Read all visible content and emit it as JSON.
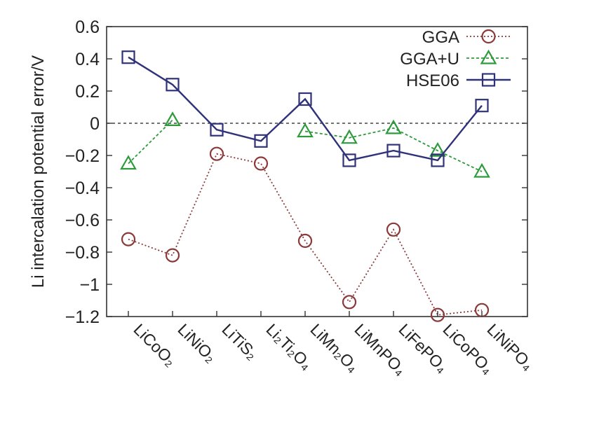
{
  "chart_data": {
    "type": "line",
    "ylabel": "Li intercalation potential error/V",
    "xlabel": "",
    "categories": [
      "LiCoO₂",
      "LiNiO₂",
      "LiTiS₂",
      "Li₂Ti₂O₄",
      "LiMn₂O₄",
      "LiMnPO₄",
      "LiFePO₄",
      "LiCoPO₄",
      "LiNiPO₄"
    ],
    "ylim": [
      -1.2,
      0.6
    ],
    "yticks": [
      0.6,
      0.4,
      0.2,
      0,
      -0.2,
      -0.4,
      -0.6,
      -0.8,
      -1,
      -1.2
    ],
    "ytick_labels": [
      "0.6",
      "0.4",
      "0.2",
      "0",
      "−0.2",
      "−0.4",
      "−0.6",
      "−0.8",
      "−1",
      "−1.2"
    ],
    "reference_line": 0,
    "legend_position": "top-right",
    "series": [
      {
        "name": "GGA",
        "marker": "circle",
        "color": "#8b3a3a",
        "line": "dotted",
        "values": [
          -0.72,
          -0.82,
          -0.19,
          -0.25,
          -0.73,
          -1.11,
          -0.66,
          -1.19,
          -1.16
        ]
      },
      {
        "name": "GGA+U",
        "marker": "triangle",
        "color": "#2e9a3c",
        "line": "dashed",
        "values": [
          -0.25,
          0.02,
          null,
          null,
          -0.05,
          -0.09,
          -0.03,
          -0.17,
          -0.3
        ]
      },
      {
        "name": "HSE06",
        "marker": "square",
        "color": "#2f3278",
        "line": "solid",
        "values": [
          0.41,
          0.24,
          -0.04,
          -0.11,
          0.15,
          -0.23,
          -0.17,
          -0.23,
          0.11
        ]
      }
    ]
  }
}
